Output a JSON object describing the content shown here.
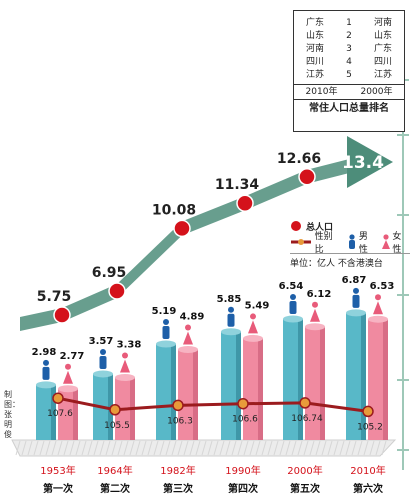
{
  "colors": {
    "arrow": "#4d8d7a",
    "total_dot": "#d4121b",
    "male_bar": "#58b8c8",
    "female_bar": "#f08aa0",
    "sex_ratio_line": "#9b1b1e",
    "sex_ratio_dot": "#e89a3a",
    "grid": "#9ec8b8"
  },
  "rank_table": {
    "rows": [
      {
        "p2010": "广东",
        "rank": "1",
        "p2000": "河南"
      },
      {
        "p2010": "山东",
        "rank": "2",
        "p2000": "山东"
      },
      {
        "p2010": "河南",
        "rank": "3",
        "p2000": "广东"
      },
      {
        "p2010": "四川",
        "rank": "4",
        "p2000": "四川"
      },
      {
        "p2010": "江苏",
        "rank": "5",
        "p2000": "江苏"
      }
    ],
    "year_left": "2010年",
    "year_right": "2000年",
    "title": "常住人口总量排名"
  },
  "legend": {
    "total_label": "总人口",
    "ratio_label": "性别比",
    "male_label": "男性",
    "female_label": "女性",
    "unit": "单位：亿人  不含港澳台"
  },
  "credit": "制图：张明俊",
  "chart_data": {
    "type": "bar",
    "categories": [
      "1953年",
      "1964年",
      "1982年",
      "1990年",
      "2000年",
      "2010年"
    ],
    "census_labels": [
      "第一次",
      "第二次",
      "第三次",
      "第四次",
      "第五次",
      "第六次"
    ],
    "total_population": [
      5.75,
      6.95,
      10.08,
      11.34,
      12.66,
      13.4
    ],
    "series": [
      {
        "name": "男性",
        "values": [
          2.98,
          3.57,
          5.19,
          5.85,
          6.54,
          6.87
        ]
      },
      {
        "name": "女性",
        "values": [
          2.77,
          3.38,
          4.89,
          5.49,
          6.12,
          6.53
        ]
      }
    ],
    "sex_ratio": {
      "name": "性别比",
      "values": [
        107.6,
        105.5,
        106.3,
        106.6,
        106.74,
        105.2
      ]
    }
  }
}
